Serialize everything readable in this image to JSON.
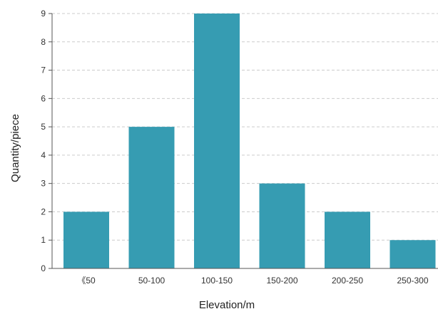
{
  "chart_data": {
    "type": "bar",
    "categories": [
      "《50",
      "50-100",
      "100-150",
      "150-200",
      "200-250",
      "250-300"
    ],
    "values": [
      2,
      5,
      9,
      3,
      2,
      1
    ],
    "xlabel": "Elevation/m",
    "ylabel": "Quantity/piece",
    "ylim": [
      0,
      9
    ],
    "yticks": [
      0,
      1,
      2,
      3,
      4,
      5,
      6,
      7,
      8,
      9
    ],
    "grid": true,
    "bar_color": "#369cb2",
    "grid_color": "#cccccc",
    "axis_color": "#555555"
  }
}
